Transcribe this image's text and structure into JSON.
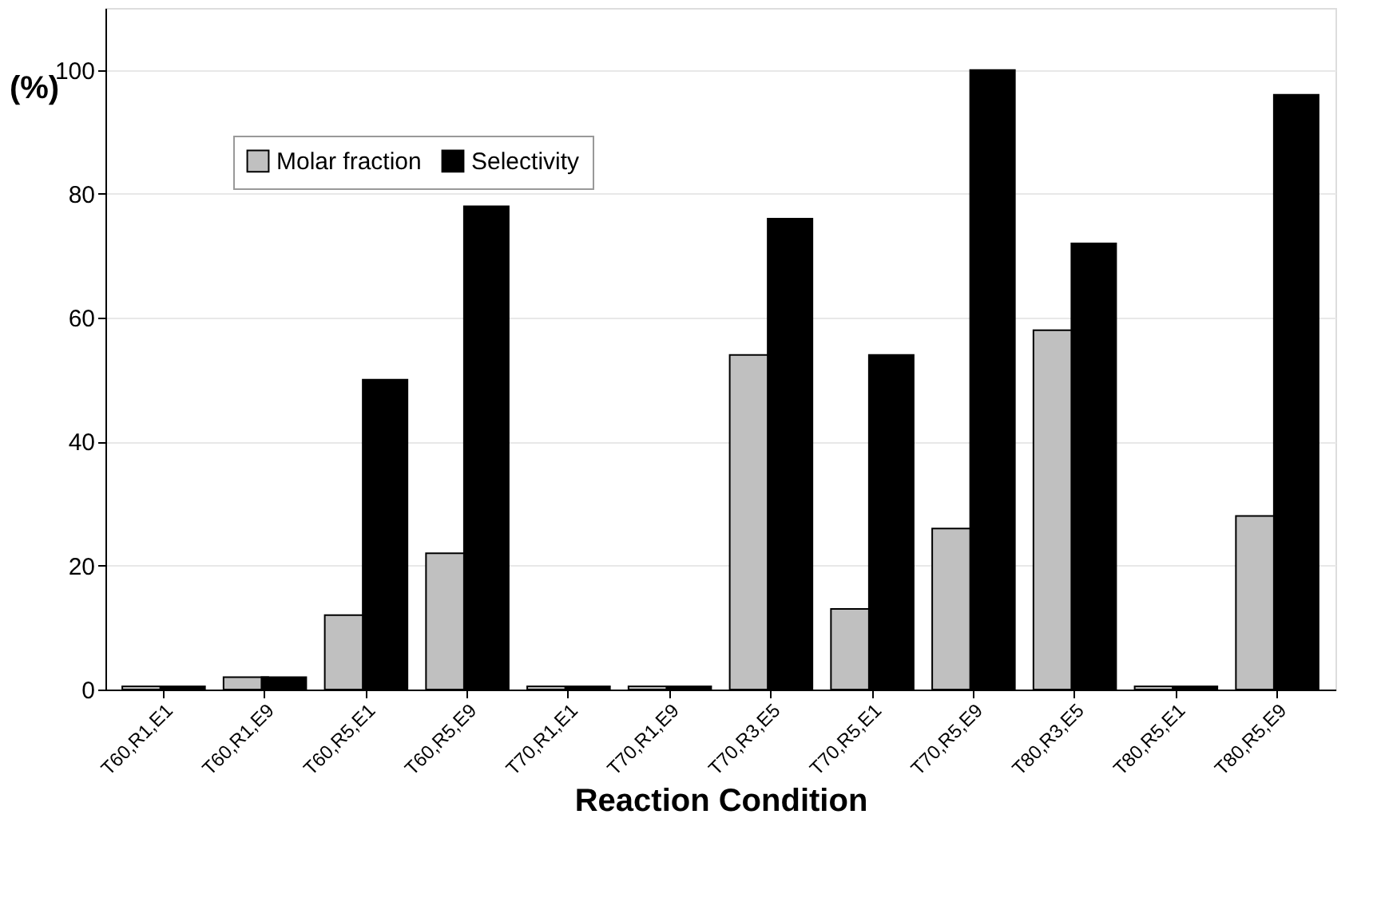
{
  "chart_data": {
    "type": "bar",
    "categories": [
      "T60,R1,E1",
      "T60,R1,E9",
      "T60,R5,E1",
      "T60,R5,E9",
      "T70,R1,E1",
      "T70,R1,E9",
      "T70,R3,E5",
      "T70,R5,E1",
      "T70,R5,E9",
      "T80,R3,E5",
      "T80,R5,E1",
      "T80,R5,E9"
    ],
    "series": [
      {
        "name": "Molar fraction",
        "color": "#c0c0c0",
        "values": [
          0.5,
          2,
          12,
          22,
          0.5,
          0.5,
          54,
          13,
          26,
          58,
          0.5,
          28
        ]
      },
      {
        "name": "Selectivity",
        "color": "#000000",
        "values": [
          0.5,
          2,
          50,
          78,
          0.5,
          0.5,
          76,
          54,
          100,
          72,
          0.5,
          96
        ]
      }
    ],
    "xlabel": "Reaction Condition",
    "ylabel": "(%)",
    "ylim": [
      0,
      110
    ],
    "yticks": [
      0,
      20,
      40,
      60,
      80,
      100
    ],
    "grid": "y",
    "legend": "top left"
  }
}
